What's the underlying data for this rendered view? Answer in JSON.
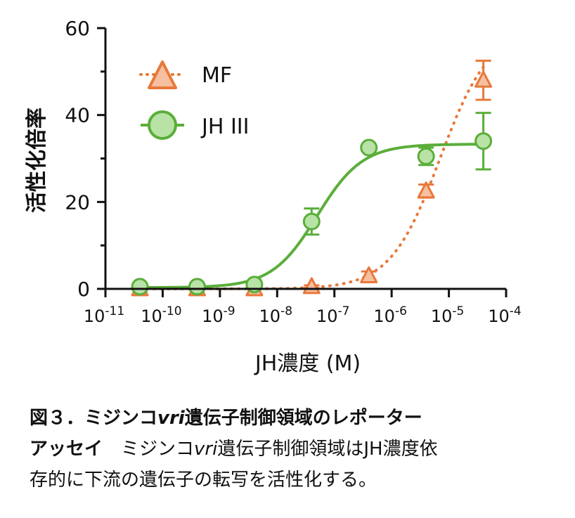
{
  "chart_data": {
    "type": "scatter",
    "x_scale": "log",
    "xlabel": "JH濃度 (M)",
    "ylabel": "活性化倍率",
    "xlim": [
      1e-11,
      0.0001
    ],
    "ylim": [
      0,
      60
    ],
    "y_ticks": [
      "0",
      "20",
      "40",
      "60"
    ],
    "y_minor_ticks": [
      10,
      30,
      50
    ],
    "x_tick_base": "10",
    "x_tick_exponents": [
      "-11",
      "-10",
      "-9",
      "-8",
      "-7",
      "-6",
      "-5",
      "-4"
    ],
    "legend_position": "top-left",
    "series": [
      {
        "name": "MF",
        "marker": "triangle",
        "line": "dotted",
        "stroke": "#E8783A",
        "fill": "#F6BFA0",
        "x": [
          4e-11,
          4e-10,
          4e-09,
          4e-08,
          4e-07,
          4e-06,
          4e-05
        ],
        "y": [
          0,
          0,
          0,
          0.5,
          3,
          22.5,
          48
        ],
        "error": [
          0,
          0,
          0,
          0.3,
          1,
          1.5,
          4.5
        ],
        "fit": {
          "bottom": 0,
          "top": 60,
          "ec50": 7e-06,
          "hill": 1
        }
      },
      {
        "name": "JH III",
        "marker": "circle",
        "line": "solid",
        "stroke": "#5AAE3A",
        "fill": "#B9E3A6",
        "x": [
          4e-11,
          4e-10,
          4e-09,
          4e-08,
          4e-07,
          4e-06,
          4e-05
        ],
        "y": [
          0.5,
          0.5,
          1,
          15.5,
          32.5,
          30.5,
          34
        ],
        "error": [
          0,
          0,
          0,
          3,
          0.5,
          2,
          6.5
        ],
        "fit": {
          "bottom": 0.3,
          "top": 33.3,
          "ec50": 5e-08,
          "hill": 1.1
        }
      }
    ]
  },
  "caption": {
    "title_prefix": "図３．ミジンコ",
    "title_italic": "vri",
    "title_suffix": "遺伝子制御領域のレポーター",
    "title_line2": "アッセイ",
    "body_prefix": "　ミジンコ",
    "body_italic": "vri",
    "body_suffix": "遺伝子制御領域はJH濃度依",
    "body_line2": "存的に下流の遺伝子の転写を活性化する。"
  }
}
